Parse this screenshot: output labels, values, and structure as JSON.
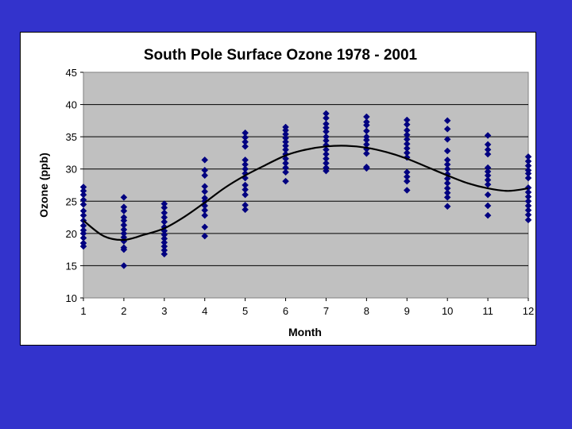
{
  "slide": {
    "background": "#3333cc"
  },
  "chart_data": {
    "type": "scatter",
    "title": "South Pole Surface Ozone 1978 - 2001",
    "xlabel": "Month",
    "ylabel": "Ozone (ppb)",
    "xlim": [
      1,
      12
    ],
    "ylim": [
      10,
      45
    ],
    "xticks": [
      "1",
      "2",
      "3",
      "4",
      "5",
      "6",
      "7",
      "8",
      "9",
      "10",
      "11",
      "12"
    ],
    "yticks": [
      "10",
      "15",
      "20",
      "25",
      "30",
      "35",
      "40",
      "45"
    ],
    "grid": true,
    "legend": "none",
    "plot_background": "#c0c0c0",
    "series": [
      {
        "kind": "points",
        "color": "#000080",
        "marker": "diamond",
        "points": [
          [
            1,
            27.2
          ],
          [
            1,
            26.6
          ],
          [
            1,
            26.0
          ],
          [
            1,
            25.2
          ],
          [
            1,
            24.5
          ],
          [
            1,
            23.5
          ],
          [
            1,
            22.8
          ],
          [
            1,
            22.0
          ],
          [
            1,
            21.2
          ],
          [
            1,
            20.5
          ],
          [
            1,
            20.0
          ],
          [
            1,
            19.3
          ],
          [
            1,
            18.5
          ],
          [
            1,
            18.0
          ],
          [
            2,
            25.6
          ],
          [
            2,
            24.1
          ],
          [
            2,
            23.5
          ],
          [
            2,
            22.5
          ],
          [
            2,
            22.0
          ],
          [
            2,
            21.3
          ],
          [
            2,
            20.6
          ],
          [
            2,
            20.0
          ],
          [
            2,
            19.4
          ],
          [
            2,
            18.8
          ],
          [
            2,
            17.8
          ],
          [
            2,
            17.5
          ],
          [
            2,
            15.0
          ],
          [
            3,
            24.6
          ],
          [
            3,
            24.0
          ],
          [
            3,
            23.2
          ],
          [
            3,
            22.5
          ],
          [
            3,
            21.8
          ],
          [
            3,
            21.0
          ],
          [
            3,
            20.4
          ],
          [
            3,
            19.8
          ],
          [
            3,
            19.2
          ],
          [
            3,
            18.6
          ],
          [
            3,
            18.0
          ],
          [
            3,
            17.4
          ],
          [
            3,
            16.8
          ],
          [
            4,
            31.4
          ],
          [
            4,
            29.8
          ],
          [
            4,
            29.0
          ],
          [
            4,
            27.3
          ],
          [
            4,
            26.5
          ],
          [
            4,
            25.5
          ],
          [
            4,
            25.0
          ],
          [
            4,
            24.3
          ],
          [
            4,
            23.6
          ],
          [
            4,
            22.8
          ],
          [
            4,
            21.0
          ],
          [
            4,
            19.6
          ],
          [
            5,
            35.6
          ],
          [
            5,
            34.9
          ],
          [
            5,
            34.2
          ],
          [
            5,
            33.5
          ],
          [
            5,
            31.4
          ],
          [
            5,
            30.7
          ],
          [
            5,
            30.0
          ],
          [
            5,
            29.3
          ],
          [
            5,
            28.6
          ],
          [
            5,
            27.5
          ],
          [
            5,
            26.8
          ],
          [
            5,
            26.0
          ],
          [
            5,
            24.4
          ],
          [
            5,
            23.7
          ],
          [
            6,
            36.5
          ],
          [
            6,
            36.0
          ],
          [
            6,
            35.4
          ],
          [
            6,
            34.8
          ],
          [
            6,
            34.2
          ],
          [
            6,
            33.6
          ],
          [
            6,
            33.0
          ],
          [
            6,
            32.3
          ],
          [
            6,
            31.6
          ],
          [
            6,
            30.9
          ],
          [
            6,
            30.2
          ],
          [
            6,
            29.5
          ],
          [
            6,
            28.1
          ],
          [
            7,
            38.6
          ],
          [
            7,
            37.9
          ],
          [
            7,
            37.0
          ],
          [
            7,
            36.4
          ],
          [
            7,
            35.8
          ],
          [
            7,
            35.0
          ],
          [
            7,
            34.4
          ],
          [
            7,
            33.7
          ],
          [
            7,
            33.0
          ],
          [
            7,
            32.3
          ],
          [
            7,
            31.6
          ],
          [
            7,
            30.9
          ],
          [
            7,
            30.2
          ],
          [
            7,
            29.7
          ],
          [
            8,
            38.1
          ],
          [
            8,
            37.3
          ],
          [
            8,
            36.8
          ],
          [
            8,
            35.9
          ],
          [
            8,
            35.0
          ],
          [
            8,
            34.5
          ],
          [
            8,
            33.8
          ],
          [
            8,
            33.1
          ],
          [
            8,
            32.4
          ],
          [
            8,
            30.3
          ],
          [
            8,
            30.1
          ],
          [
            9,
            37.6
          ],
          [
            9,
            36.9
          ],
          [
            9,
            36.0
          ],
          [
            9,
            35.3
          ],
          [
            9,
            34.6
          ],
          [
            9,
            33.9
          ],
          [
            9,
            33.2
          ],
          [
            9,
            32.5
          ],
          [
            9,
            31.8
          ],
          [
            9,
            29.5
          ],
          [
            9,
            28.8
          ],
          [
            9,
            28.1
          ],
          [
            9,
            26.7
          ],
          [
            10,
            37.5
          ],
          [
            10,
            36.2
          ],
          [
            10,
            34.6
          ],
          [
            10,
            32.8
          ],
          [
            10,
            31.4
          ],
          [
            10,
            30.7
          ],
          [
            10,
            30.0
          ],
          [
            10,
            29.2
          ],
          [
            10,
            28.5
          ],
          [
            10,
            27.8
          ],
          [
            10,
            27.0
          ],
          [
            10,
            26.3
          ],
          [
            10,
            25.6
          ],
          [
            10,
            24.2
          ],
          [
            11,
            35.2
          ],
          [
            11,
            33.8
          ],
          [
            11,
            33.0
          ],
          [
            11,
            32.3
          ],
          [
            11,
            30.2
          ],
          [
            11,
            29.6
          ],
          [
            11,
            29.0
          ],
          [
            11,
            28.3
          ],
          [
            11,
            27.6
          ],
          [
            11,
            26.0
          ],
          [
            11,
            24.3
          ],
          [
            11,
            22.8
          ],
          [
            12,
            31.9
          ],
          [
            12,
            31.2
          ],
          [
            12,
            30.5
          ],
          [
            12,
            29.8
          ],
          [
            12,
            29.3
          ],
          [
            12,
            28.6
          ],
          [
            12,
            27.1
          ],
          [
            12,
            26.4
          ],
          [
            12,
            25.7
          ],
          [
            12,
            25.0
          ],
          [
            12,
            24.3
          ],
          [
            12,
            23.6
          ],
          [
            12,
            22.9
          ],
          [
            12,
            22.1
          ]
        ]
      },
      {
        "kind": "trend",
        "color": "#000000",
        "points": [
          [
            1,
            22.0
          ],
          [
            1.5,
            19.6
          ],
          [
            2,
            19.0
          ],
          [
            2.5,
            19.8
          ],
          [
            3,
            20.8
          ],
          [
            3.5,
            22.6
          ],
          [
            4,
            24.8
          ],
          [
            4.5,
            27.1
          ],
          [
            5,
            29.0
          ],
          [
            5.5,
            30.6
          ],
          [
            6,
            32.1
          ],
          [
            6.5,
            33.0
          ],
          [
            7,
            33.5
          ],
          [
            7.5,
            33.6
          ],
          [
            8,
            33.3
          ],
          [
            8.5,
            32.6
          ],
          [
            9,
            31.6
          ],
          [
            9.5,
            30.3
          ],
          [
            10,
            29.0
          ],
          [
            10.5,
            27.8
          ],
          [
            11,
            27.0
          ],
          [
            11.5,
            26.6
          ],
          [
            12,
            27.0
          ]
        ]
      }
    ]
  }
}
